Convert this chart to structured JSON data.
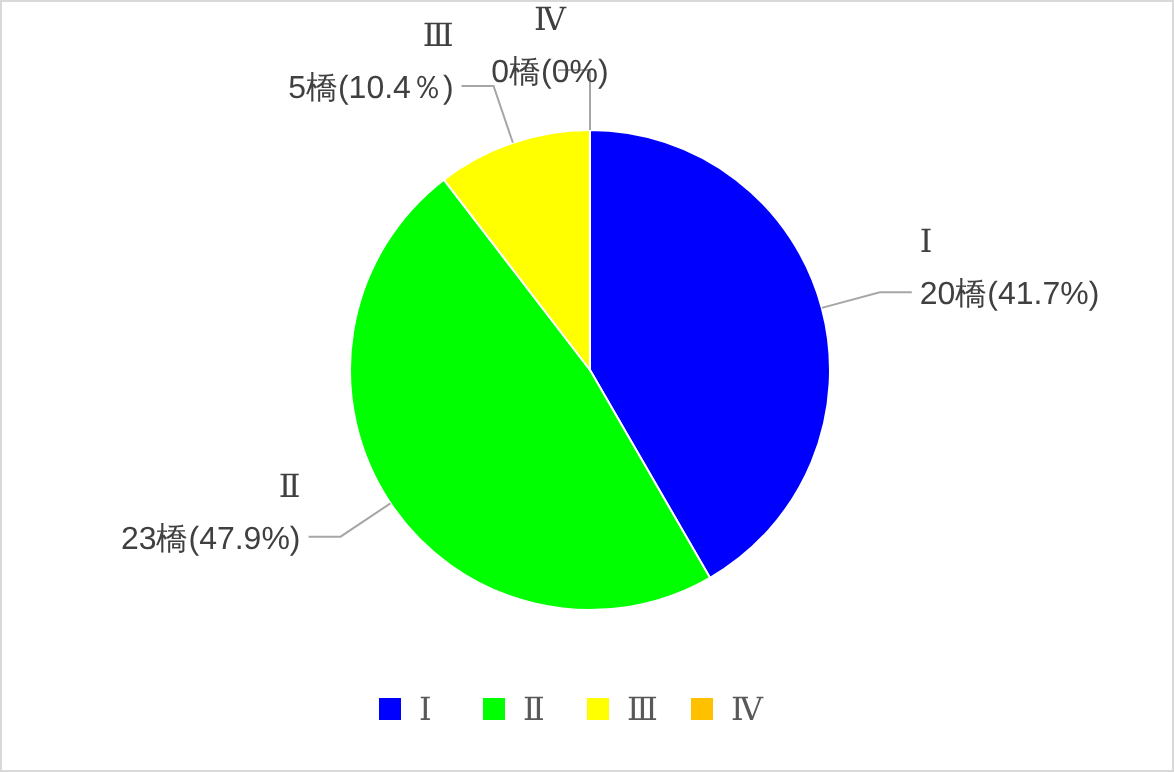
{
  "chart_data": {
    "type": "pie",
    "categories": [
      "Ⅰ",
      "Ⅱ",
      "Ⅲ",
      "Ⅳ"
    ],
    "values": [
      20,
      23,
      5,
      0
    ],
    "colors": [
      "#0000ff",
      "#00ff00",
      "#ffff00",
      "#ffc000"
    ],
    "value_labels": [
      "20橋(41.7%)",
      "23橋(47.9%)",
      "5橋(10.4％)",
      "0橋(0%)"
    ],
    "legend": "bottom"
  }
}
